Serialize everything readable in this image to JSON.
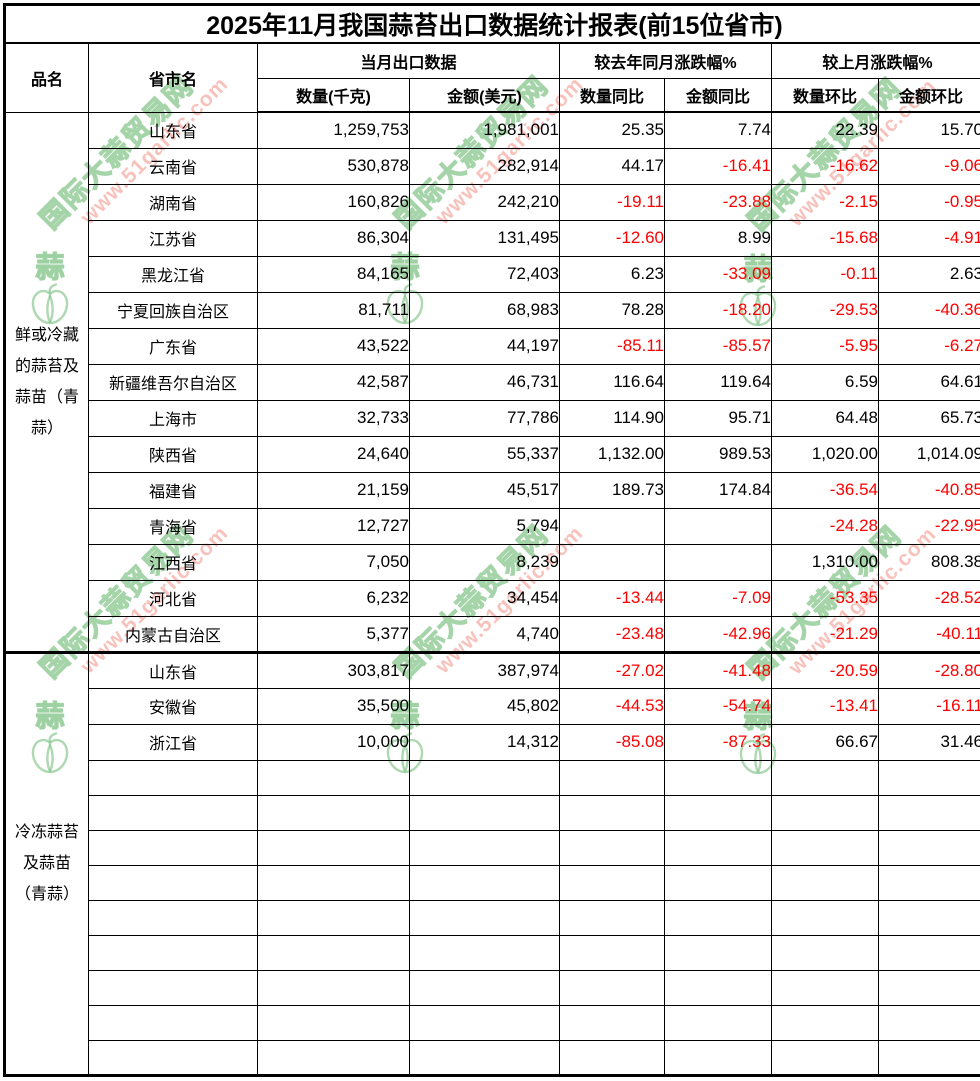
{
  "title": "2025年11月我国蒜苔出口数据统计报表(前15位省市)",
  "header": {
    "product": "品名",
    "province": "省市名",
    "current_month_group": "当月出口数据",
    "yoy_group": "较去年同月涨跌幅%",
    "mom_group": "较上月涨跌幅%",
    "qty_kg": "数量(千克)",
    "amount_usd": "金额(美元)",
    "qty_yoy": "数量同比",
    "amount_yoy": "金额同比",
    "qty_mom": "数量环比",
    "amount_mom": "金额环比"
  },
  "colors": {
    "negative_value": "#ff0000",
    "text": "#000000",
    "watermark_green": "#8cc891",
    "watermark_pink": "#f29c92"
  },
  "watermark": {
    "site_name": "国际大蒜贸易网",
    "url": "www.51garlic.com",
    "logo_char": "蒜"
  },
  "groups": [
    {
      "product": "鲜或冷藏的蒜苔及蒜苗（青蒜）",
      "empty_rows": 0,
      "rows": [
        {
          "province": "山东省",
          "qty": "1,259,753",
          "amount": "1,981,001",
          "qty_yoy": "25.35",
          "amount_yoy": "7.74",
          "qty_mom": "22.39",
          "amount_mom": "15.70"
        },
        {
          "province": "云南省",
          "qty": "530,878",
          "amount": "282,914",
          "qty_yoy": "44.17",
          "amount_yoy": "-16.41",
          "qty_mom": "-16.62",
          "amount_mom": "-9.06"
        },
        {
          "province": "湖南省",
          "qty": "160,826",
          "amount": "242,210",
          "qty_yoy": "-19.11",
          "amount_yoy": "-23.88",
          "qty_mom": "-2.15",
          "amount_mom": "-0.95"
        },
        {
          "province": "江苏省",
          "qty": "86,304",
          "amount": "131,495",
          "qty_yoy": "-12.60",
          "amount_yoy": "8.99",
          "qty_mom": "-15.68",
          "amount_mom": "-4.91"
        },
        {
          "province": "黑龙江省",
          "qty": "84,165",
          "amount": "72,403",
          "qty_yoy": "6.23",
          "amount_yoy": "-33.09",
          "qty_mom": "-0.11",
          "amount_mom": "2.63"
        },
        {
          "province": "宁夏回族自治区",
          "qty": "81,711",
          "amount": "68,983",
          "qty_yoy": "78.28",
          "amount_yoy": "-18.20",
          "qty_mom": "-29.53",
          "amount_mom": "-40.36"
        },
        {
          "province": "广东省",
          "qty": "43,522",
          "amount": "44,197",
          "qty_yoy": "-85.11",
          "amount_yoy": "-85.57",
          "qty_mom": "-5.95",
          "amount_mom": "-6.27"
        },
        {
          "province": "新疆维吾尔自治区",
          "qty": "42,587",
          "amount": "46,731",
          "qty_yoy": "116.64",
          "amount_yoy": "119.64",
          "qty_mom": "6.59",
          "amount_mom": "64.61"
        },
        {
          "province": "上海市",
          "qty": "32,733",
          "amount": "77,786",
          "qty_yoy": "114.90",
          "amount_yoy": "95.71",
          "qty_mom": "64.48",
          "amount_mom": "65.73"
        },
        {
          "province": "陕西省",
          "qty": "24,640",
          "amount": "55,337",
          "qty_yoy": "1,132.00",
          "amount_yoy": "989.53",
          "qty_mom": "1,020.00",
          "amount_mom": "1,014.09"
        },
        {
          "province": "福建省",
          "qty": "21,159",
          "amount": "45,517",
          "qty_yoy": "189.73",
          "amount_yoy": "174.84",
          "qty_mom": "-36.54",
          "amount_mom": "-40.85"
        },
        {
          "province": "青海省",
          "qty": "12,727",
          "amount": "5,794",
          "qty_yoy": "",
          "amount_yoy": "",
          "qty_mom": "-24.28",
          "amount_mom": "-22.95"
        },
        {
          "province": "江西省",
          "qty": "7,050",
          "amount": "8,239",
          "qty_yoy": "",
          "amount_yoy": "",
          "qty_mom": "1,310.00",
          "amount_mom": "808.38"
        },
        {
          "province": "河北省",
          "qty": "6,232",
          "amount": "34,454",
          "qty_yoy": "-13.44",
          "amount_yoy": "-7.09",
          "qty_mom": "-53.35",
          "amount_mom": "-28.52"
        },
        {
          "province": "内蒙古自治区",
          "qty": "5,377",
          "amount": "4,740",
          "qty_yoy": "-23.48",
          "amount_yoy": "-42.96",
          "qty_mom": "-21.29",
          "amount_mom": "-40.11"
        }
      ]
    },
    {
      "product": "冷冻蒜苔及蒜苗（青蒜）",
      "empty_rows": 9,
      "rows": [
        {
          "province": "山东省",
          "qty": "303,817",
          "amount": "387,974",
          "qty_yoy": "-27.02",
          "amount_yoy": "-41.48",
          "qty_mom": "-20.59",
          "amount_mom": "-28.80"
        },
        {
          "province": "安徽省",
          "qty": "35,500",
          "amount": "45,802",
          "qty_yoy": "-44.53",
          "amount_yoy": "-54.74",
          "qty_mom": "-13.41",
          "amount_mom": "-16.11"
        },
        {
          "province": "浙江省",
          "qty": "10,000",
          "amount": "14,312",
          "qty_yoy": "-85.08",
          "amount_yoy": "-87.33",
          "qty_mom": "66.67",
          "amount_mom": "31.46"
        }
      ]
    }
  ]
}
